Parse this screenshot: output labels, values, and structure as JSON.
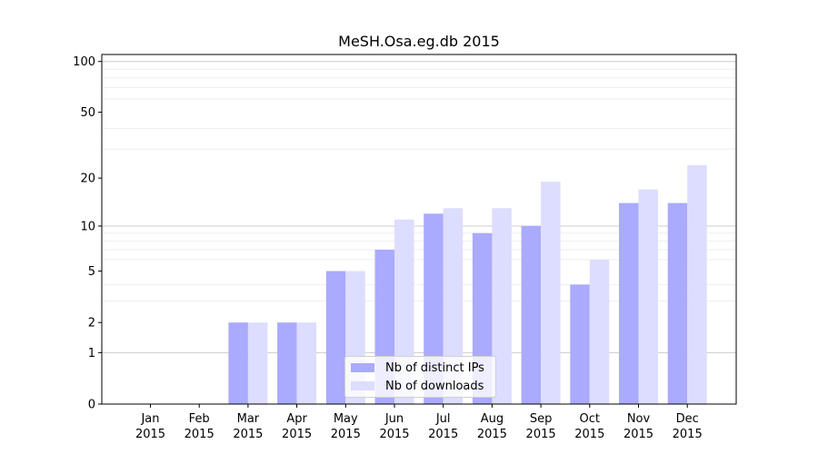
{
  "chart_data": {
    "type": "bar",
    "title": "MeSH.Osa.eg.db 2015",
    "xlabel": "",
    "ylabel": "",
    "yscale": "log(1+y)",
    "ylim": [
      0,
      110
    ],
    "yticks": [
      0,
      1,
      2,
      5,
      10,
      20,
      50,
      100
    ],
    "grid": "horizontal",
    "legend_position": "bottom-center",
    "categories": [
      [
        "Jan",
        "2015"
      ],
      [
        "Feb",
        "2015"
      ],
      [
        "Mar",
        "2015"
      ],
      [
        "Apr",
        "2015"
      ],
      [
        "May",
        "2015"
      ],
      [
        "Jun",
        "2015"
      ],
      [
        "Jul",
        "2015"
      ],
      [
        "Aug",
        "2015"
      ],
      [
        "Sep",
        "2015"
      ],
      [
        "Oct",
        "2015"
      ],
      [
        "Nov",
        "2015"
      ],
      [
        "Dec",
        "2015"
      ]
    ],
    "series": [
      {
        "name": "Nb of distinct IPs",
        "color": "#aaaaff",
        "values": [
          0,
          0,
          2,
          2,
          5,
          7,
          12,
          9,
          10,
          4,
          14,
          14
        ]
      },
      {
        "name": "Nb of downloads",
        "color": "#ddddff",
        "values": [
          0,
          0,
          2,
          2,
          5,
          11,
          13,
          13,
          19,
          6,
          17,
          24
        ]
      }
    ]
  }
}
